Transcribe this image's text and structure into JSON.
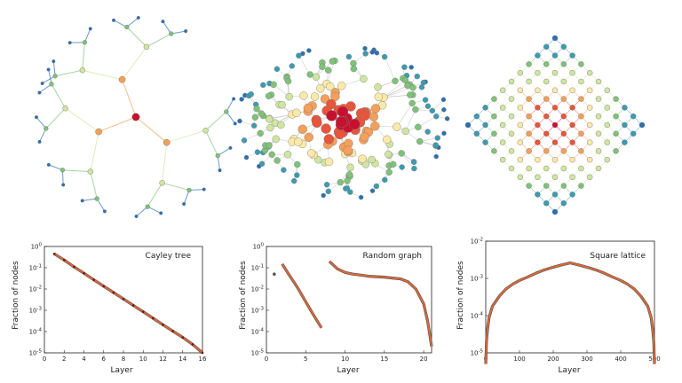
{
  "colors": {
    "hub": "#c8102e",
    "inner": "#e8553a",
    "middle": "#f5a05a",
    "pale": "#fbe9a8",
    "light_green": "#cfe6a0",
    "green": "#7fc27a",
    "teal": "#3c9bb0",
    "blue": "#2b6fb4",
    "curve": "#d9683a",
    "curve_edge": "#555555"
  },
  "networks": [
    {
      "kind": "cayley-tree"
    },
    {
      "kind": "random-graph"
    },
    {
      "kind": "square-lattice"
    }
  ],
  "chart_data": [
    {
      "type": "line",
      "title": "Cayley tree",
      "xlabel": "Layer",
      "ylabel": "Fraction of nodes",
      "xlim": [
        0,
        16
      ],
      "xticks": [
        "0",
        "2",
        "4",
        "6",
        "8",
        "10",
        "12",
        "14",
        "16"
      ],
      "yscale": "log",
      "ylim": [
        1e-05,
        1
      ],
      "yticks": [
        "10^-5",
        "10^-4",
        "10^-3",
        "10^-2",
        "10^-1",
        "10^0"
      ],
      "series": [
        {
          "x": [
            1,
            2,
            3,
            4,
            5,
            6,
            7,
            8,
            9,
            10,
            11,
            12,
            13,
            14,
            15,
            16
          ],
          "y": [
            0.45,
            0.23,
            0.11,
            0.055,
            0.027,
            0.0135,
            0.0068,
            0.0034,
            0.0017,
            0.00085,
            0.00042,
            0.00021,
            0.000105,
            5.3e-05,
            2.5e-05,
            1e-05
          ]
        }
      ]
    },
    {
      "type": "line",
      "title": "Random graph",
      "xlabel": "Layer",
      "ylabel": "Fraction of nodes",
      "xlim": [
        0,
        21
      ],
      "xticks": [
        "0",
        "5",
        "10",
        "15",
        "20"
      ],
      "yscale": "log",
      "ylim": [
        1e-05,
        1
      ],
      "yticks": [
        "10^-5",
        "10^-4",
        "10^-3",
        "10^-2",
        "10^-1",
        "10^0"
      ],
      "series": [
        {
          "x": [
            1
          ],
          "y": [
            0.05
          ]
        },
        {
          "x": [
            2,
            3,
            4,
            5,
            6,
            7
          ],
          "y": [
            0.15,
            0.04,
            0.011,
            0.0025,
            0.0006,
            0.00015
          ]
        },
        {
          "x": [
            8,
            9,
            10,
            11,
            12,
            13,
            14,
            15,
            16,
            17,
            18,
            19,
            20,
            20.5,
            21
          ],
          "y": [
            0.2,
            0.09,
            0.06,
            0.05,
            0.045,
            0.04,
            0.038,
            0.036,
            0.033,
            0.03,
            0.022,
            0.01,
            0.002,
            0.0003,
            2e-05
          ]
        }
      ]
    },
    {
      "type": "line",
      "title": "Square lattice",
      "xlabel": "Layer",
      "ylabel": "Fraction of nodes",
      "xlim": [
        0,
        500
      ],
      "xticks": [
        "0",
        "100",
        "200",
        "300",
        "400",
        "500"
      ],
      "yscale": "log",
      "ylim": [
        1e-05,
        0.01
      ],
      "yticks": [
        "10^-5",
        "10^-4",
        "10^-3",
        "10^-2"
      ],
      "series": [
        {
          "x": [
            0,
            2,
            5,
            10,
            20,
            40,
            60,
            80,
            100,
            125,
            150,
            175,
            200,
            225,
            250,
            275,
            300,
            325,
            350,
            375,
            400,
            420,
            440,
            460,
            480,
            490,
            495,
            498,
            500
          ],
          "y": [
            5e-06,
            2e-05,
            4e-05,
            9e-05,
            0.00018,
            0.00033,
            0.00052,
            0.0007,
            0.00088,
            0.0011,
            0.0014,
            0.0017,
            0.002,
            0.0023,
            0.0026,
            0.0023,
            0.002,
            0.0017,
            0.0014,
            0.0011,
            0.00088,
            0.0007,
            0.00052,
            0.00033,
            0.00018,
            9e-05,
            4e-05,
            2e-05,
            5e-06
          ]
        }
      ]
    }
  ]
}
